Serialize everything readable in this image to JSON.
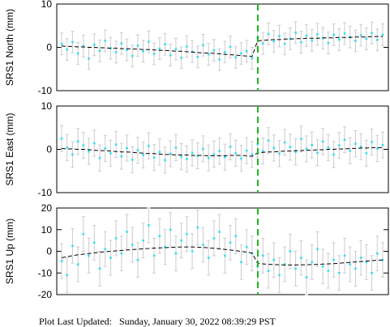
{
  "chart_data": [
    {
      "type": "scatter",
      "ylabel": "SRS1 North (mm)",
      "ylim": [
        -10,
        10
      ],
      "yticks": [
        -10,
        0,
        10
      ],
      "color": "#33e0f0",
      "error_color": "#cccccc",
      "model_color": "#000000",
      "error": 2.5,
      "values": [
        0.8,
        -0.5,
        1.2,
        -1.4,
        0.3,
        -2.6,
        0.6,
        -0.8,
        1.5,
        -0.2,
        -1.1,
        0.9,
        -0.6,
        -2.0,
        0.4,
        -0.9,
        1.3,
        -1.5,
        -0.3,
        0.7,
        -1.8,
        -0.4,
        -2.4,
        0.2,
        -1.0,
        -2.2,
        0.5,
        -1.6,
        -0.7,
        -2.8,
        -1.1,
        0.1,
        -2.3,
        -1.4,
        -0.9,
        -2.5,
        2.2,
        0.9,
        3.1,
        1.4,
        2.6,
        0.8,
        2.0,
        3.4,
        1.2,
        2.7,
        1.6,
        3.0,
        2.1,
        1.0,
        2.9,
        1.8,
        3.2,
        2.4,
        1.5,
        2.8,
        2.0,
        3.3,
        1.7,
        2.9
      ],
      "model": [
        0.3,
        0.2,
        0.2,
        0.1,
        0.1,
        0,
        0,
        -0.1,
        -0.1,
        -0.2,
        -0.2,
        -0.3,
        -0.3,
        -0.4,
        -0.4,
        -0.5,
        -0.5,
        -0.6,
        -0.7,
        -0.7,
        -0.8,
        -0.9,
        -0.9,
        -1.0,
        -1.1,
        -1.2,
        -1.3,
        -1.3,
        -1.4,
        -1.5,
        -1.6,
        -1.7,
        -1.8,
        -1.9,
        -2.0,
        -2.1,
        1.5,
        1.6,
        1.7,
        1.8,
        1.8,
        1.9,
        1.9,
        2.0,
        2.0,
        2.1,
        2.1,
        2.1,
        2.2,
        2.2,
        2.2,
        2.3,
        2.3,
        2.3,
        2.4,
        2.4,
        2.4,
        2.5,
        2.5,
        2.5
      ]
    },
    {
      "type": "scatter",
      "ylabel": "SRS1 East (mm)",
      "ylim": [
        -10,
        10
      ],
      "yticks": [
        -10,
        0,
        10
      ],
      "color": "#33e0f0",
      "error_color": "#cccccc",
      "model_color": "#000000",
      "error": 3,
      "values": [
        2.5,
        0.4,
        -1.2,
        1.8,
        0.9,
        -0.5,
        1.4,
        -2.0,
        0.2,
        -0.9,
        1.1,
        -1.6,
        0.3,
        -2.4,
        -0.2,
        -1.3,
        0.8,
        -1.9,
        -0.6,
        -2.5,
        -1.0,
        0.4,
        -1.7,
        -2.2,
        -0.8,
        -1.5,
        0.1,
        -2.0,
        -1.1,
        -0.4,
        -1.8,
        0.6,
        -0.9,
        -2.1,
        -0.3,
        -1.2,
        1.2,
        -0.4,
        2.0,
        0.3,
        -1.0,
        1.6,
        0.5,
        -0.6,
        2.4,
        0.1,
        1.0,
        -0.8,
        1.8,
        0.4,
        -1.2,
        0.9,
        2.2,
        -0.3,
        1.3,
        0.6,
        -0.9,
        1.7,
        0.2,
        1.0
      ],
      "model": [
        0.2,
        0.1,
        0.1,
        0,
        0,
        -0.1,
        -0.2,
        -0.3,
        -0.3,
        -0.4,
        -0.5,
        -0.6,
        -0.6,
        -0.7,
        -0.8,
        -0.9,
        -1.0,
        -1.0,
        -1.1,
        -1.2,
        -1.2,
        -1.3,
        -1.3,
        -1.3,
        -1.4,
        -1.4,
        -1.4,
        -1.5,
        -1.5,
        -1.5,
        -1.5,
        -1.4,
        -1.4,
        -1.4,
        -1.5,
        -1.6,
        -0.8,
        -0.7,
        -0.6,
        -0.6,
        -0.5,
        -0.4,
        -0.4,
        -0.3,
        -0.3,
        -0.2,
        -0.2,
        -0.1,
        -0.1,
        0,
        0,
        0.1,
        0.1,
        0.2,
        0.2,
        0.3,
        0.3,
        0.4,
        0.4,
        0.4
      ]
    },
    {
      "type": "scatter",
      "ylabel": "SRS1 Up (mm)",
      "ylim": [
        -20,
        20
      ],
      "yticks": [
        -20,
        -10,
        0,
        10,
        20
      ],
      "color": "#33e0f0",
      "error_color": "#cccccc",
      "model_color": "#000000",
      "error": 8,
      "values": [
        -4.5,
        -11,
        2.5,
        -6,
        8,
        -2,
        4,
        -8,
        1,
        -3,
        6,
        -1,
        9,
        3,
        -4,
        5,
        12,
        -2,
        7,
        2,
        10,
        -1,
        5,
        8,
        0,
        11,
        3,
        -3,
        6,
        9,
        -2,
        4,
        7,
        -5,
        2,
        -1,
        -7,
        -2,
        -9,
        -4,
        -11,
        -6,
        0,
        -8,
        -3,
        -12,
        -5,
        1,
        -7,
        -9,
        -4,
        -10,
        -2,
        -6,
        -8,
        -3,
        -5,
        -10,
        -1,
        -4
      ],
      "model": [
        -3,
        -2.5,
        -2,
        -1.6,
        -1.3,
        -1,
        -0.7,
        -0.4,
        -0.2,
        0,
        0.2,
        0.4,
        0.6,
        0.8,
        1,
        1.2,
        1.3,
        1.5,
        1.6,
        1.7,
        1.8,
        1.9,
        2,
        2,
        2,
        1.9,
        1.8,
        1.6,
        1.4,
        1.2,
        0.9,
        0.6,
        0.3,
        0,
        -0.4,
        -0.8,
        -5.5,
        -5.8,
        -6,
        -6.1,
        -6.2,
        -6.3,
        -6.3,
        -6.3,
        -6.2,
        -6.2,
        -6.1,
        -6,
        -5.9,
        -5.8,
        -5.7,
        -5.5,
        -5.3,
        -5.1,
        -4.9,
        -4.7,
        -4.5,
        -4.3,
        -4.1,
        -4.0
      ]
    }
  ],
  "footer": "Plot Last Updated:   Sunday, January 30, 2022 08:39:29 PST"
}
